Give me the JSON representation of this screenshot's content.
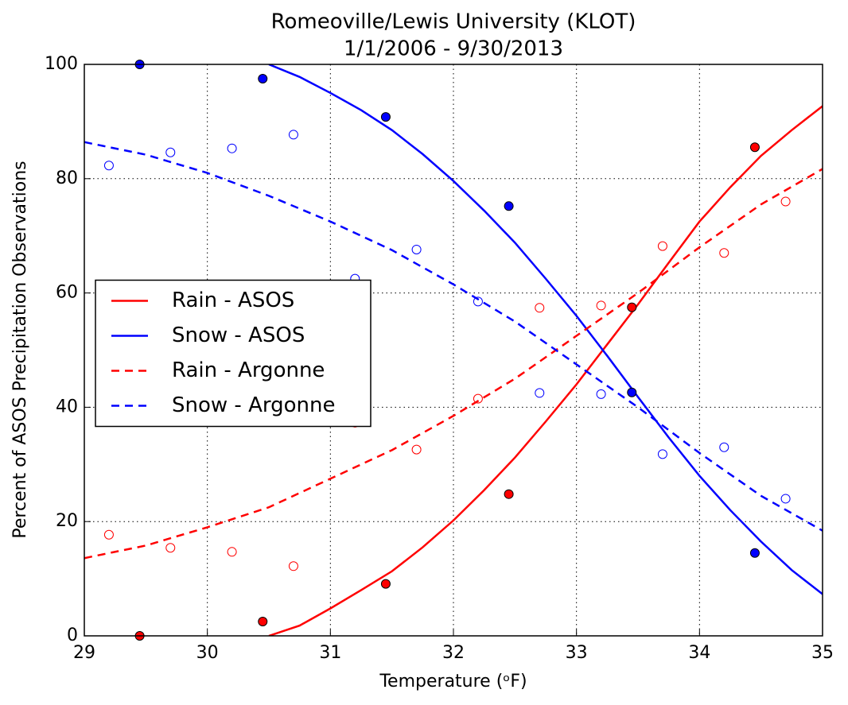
{
  "chart_data": {
    "type": "line",
    "title": "Romeoville/Lewis University (KLOT)",
    "subtitle": "1/1/2006 - 9/30/2013",
    "xlabel": "Temperature (ᵒF)",
    "ylabel": "Percent of ASOS Precipitation Observations",
    "xlim": [
      29,
      35
    ],
    "ylim": [
      0,
      100
    ],
    "xticks": [
      29,
      30,
      31,
      32,
      33,
      34,
      35
    ],
    "yticks": [
      0,
      20,
      40,
      60,
      80,
      100
    ],
    "grid": true,
    "legend": "center left",
    "series": [
      {
        "name": "Rain - ASOS",
        "color": "#ff0000",
        "dashed": false,
        "x": [
          30.5,
          30.75,
          31,
          31.25,
          31.5,
          31.75,
          32,
          32.25,
          32.5,
          32.75,
          33,
          33.25,
          33.5,
          33.75,
          34,
          34.25,
          34.5,
          34.75,
          35
        ],
        "values": [
          0,
          1.8,
          4.8,
          8,
          11.3,
          15.5,
          20.2,
          25.5,
          31.2,
          37.5,
          44,
          51,
          58,
          65.3,
          72.5,
          78.5,
          84,
          88.5,
          92.7
        ]
      },
      {
        "name": "Snow - ASOS",
        "color": "#0000ff",
        "dashed": false,
        "x": [
          30.5,
          30.75,
          31,
          31.25,
          31.5,
          31.75,
          32,
          32.25,
          32.5,
          32.75,
          33,
          33.25,
          33.5,
          33.75,
          34,
          34.25,
          34.5,
          34.75,
          35
        ],
        "values": [
          100,
          97.8,
          95,
          92,
          88.5,
          84.3,
          79.6,
          74.4,
          68.8,
          62.5,
          56,
          49,
          41.8,
          34.7,
          28,
          22,
          16.5,
          11.5,
          7.3
        ]
      },
      {
        "name": "Rain - Argonne",
        "color": "#ff0000",
        "dashed": true,
        "x": [
          29,
          29.5,
          30,
          30.5,
          31,
          31.5,
          32,
          32.5,
          33,
          33.5,
          34,
          34.5,
          35
        ],
        "values": [
          13.6,
          15.8,
          19,
          22.5,
          27.5,
          32.5,
          38.5,
          45,
          52.5,
          60,
          68,
          75.5,
          81.7
        ]
      },
      {
        "name": "Snow - Argonne",
        "color": "#0000ff",
        "dashed": true,
        "x": [
          29,
          29.5,
          30,
          30.5,
          31,
          31.5,
          32,
          32.5,
          33,
          33.5,
          34,
          34.5,
          35
        ],
        "values": [
          86.4,
          84.2,
          81,
          77,
          72.5,
          67.5,
          61.5,
          55,
          47.5,
          40,
          32,
          24.5,
          18.4
        ]
      }
    ],
    "points": [
      {
        "color": "#ff0000",
        "filled": true,
        "x": [
          29.45,
          30.45,
          31.45,
          32.45,
          33.45,
          34.45
        ],
        "values": [
          0,
          2.5,
          9.1,
          24.8,
          57.5,
          85.5
        ]
      },
      {
        "color": "#0000ff",
        "filled": true,
        "x": [
          29.45,
          30.45,
          31.45,
          32.45,
          33.45,
          34.45
        ],
        "values": [
          100,
          97.5,
          90.8,
          75.2,
          42.6,
          14.5
        ]
      },
      {
        "color": "#ff0000",
        "filled": false,
        "x": [
          29.2,
          29.7,
          30.2,
          30.7,
          31.2,
          31.7,
          32.2,
          32.7,
          33.2,
          33.7,
          34.2,
          34.7
        ],
        "values": [
          17.7,
          15.4,
          14.7,
          12.2,
          37.3,
          32.6,
          41.5,
          57.4,
          57.8,
          68.2,
          67,
          76
        ]
      },
      {
        "color": "#0000ff",
        "filled": false,
        "x": [
          29.2,
          29.7,
          30.2,
          30.7,
          31.2,
          31.7,
          32.2,
          32.7,
          33.2,
          33.7,
          34.2,
          34.7
        ],
        "values": [
          82.3,
          84.6,
          85.3,
          87.7,
          62.5,
          67.6,
          58.5,
          42.5,
          42.3,
          31.8,
          33,
          24
        ]
      }
    ]
  }
}
